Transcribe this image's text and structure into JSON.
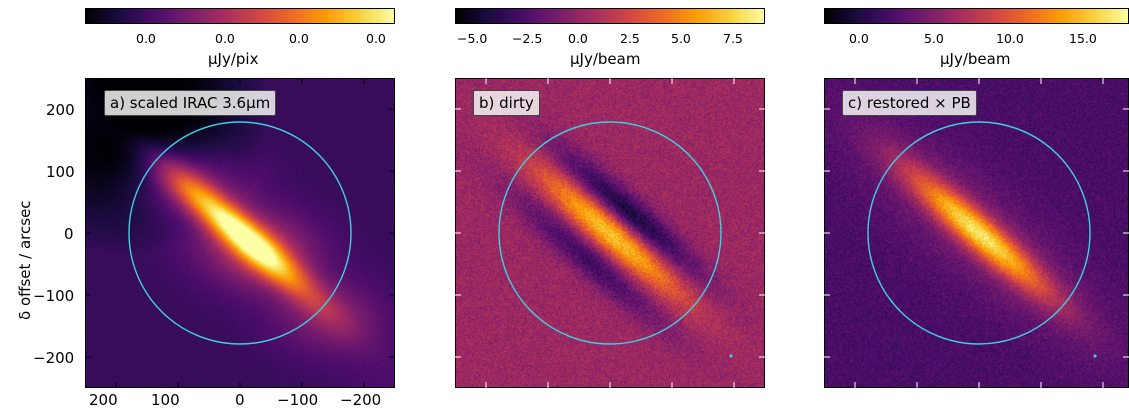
{
  "colormap": [
    "#000004",
    "#1b0c41",
    "#4a0c6b",
    "#781c6d",
    "#a52c60",
    "#cf4446",
    "#ed6925",
    "#fb9b06",
    "#f7d13d",
    "#fcffa4"
  ],
  "circle_color": "#3fd0e0",
  "panels": [
    {
      "tag": "a) scaled IRAC 3.6µm",
      "colorbar": {
        "ticks": [
          "0.0",
          "0.0",
          "0.0",
          "0.0"
        ],
        "unit": "µJy/pix"
      }
    },
    {
      "tag": "b) dirty",
      "colorbar": {
        "ticks": [
          "−5.0",
          "−2.5",
          "0.0",
          "2.5",
          "5.0",
          "7.5"
        ],
        "unit": "µJy/beam"
      }
    },
    {
      "tag": "c) restored × PB",
      "colorbar": {
        "ticks": [
          "0.0",
          "5.0",
          "10.0",
          "15.0"
        ],
        "unit": "µJy/beam"
      }
    }
  ],
  "axes": {
    "ylabel": "δ  offset / arcsec",
    "yticks": [
      "200",
      "100",
      "0",
      "−100",
      "−200"
    ],
    "xticks": [
      "200",
      "100",
      "0",
      "−100",
      "−200"
    ]
  }
}
